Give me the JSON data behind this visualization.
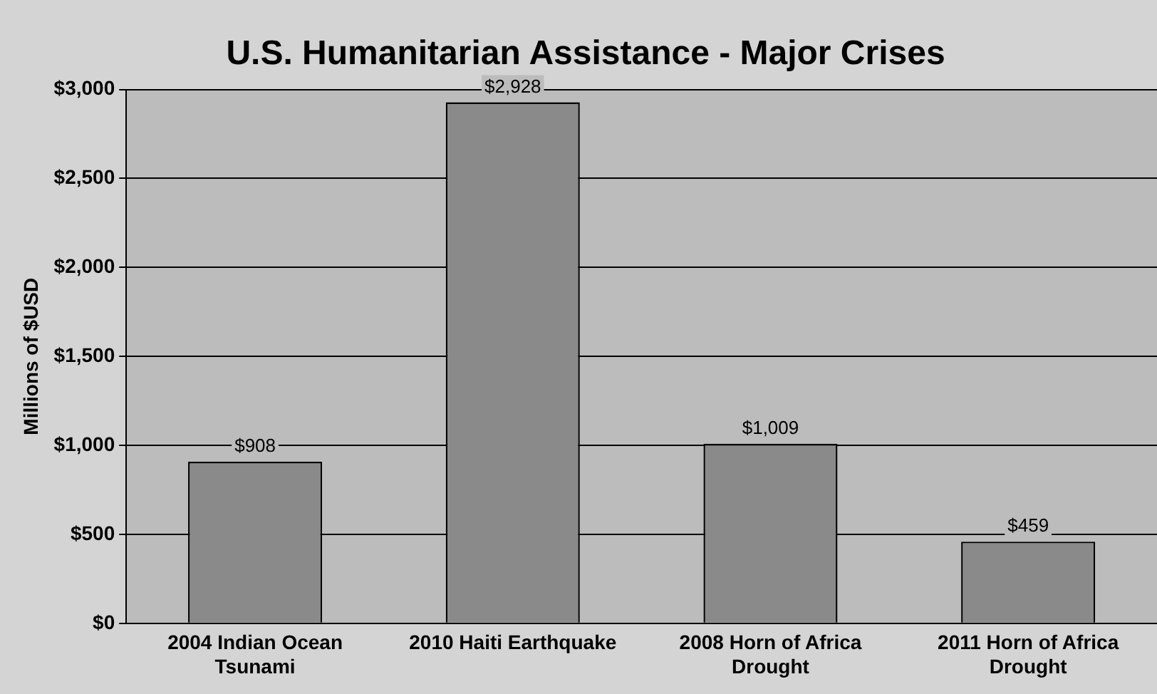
{
  "chart_data": {
    "type": "bar",
    "title": "U.S. Humanitarian Assistance - Major Crises",
    "ylabel": "Millions of $USD",
    "categories": [
      "2004 Indian Ocean Tsunami",
      "2010 Haiti Earthquake",
      "2008 Horn of Africa Drought",
      "2011 Horn of Africa Drought"
    ],
    "values": [
      908,
      2928,
      1009,
      459
    ],
    "color": "#8a8a8a",
    "value_labels": [
      "$908",
      "$2,928",
      "$1,009",
      "$459"
    ],
    "ylim": [
      0,
      3000
    ],
    "yticks": [
      {
        "value": 0,
        "label": "$0"
      },
      {
        "value": 500,
        "label": "$500"
      },
      {
        "value": 1000,
        "label": "$1,000"
      },
      {
        "value": 1500,
        "label": "$1,500"
      },
      {
        "value": 2000,
        "label": "$2,000"
      },
      {
        "value": 2500,
        "label": "$2,500"
      },
      {
        "value": 3000,
        "label": "$3,000"
      }
    ],
    "grid": "y",
    "legend": false
  }
}
